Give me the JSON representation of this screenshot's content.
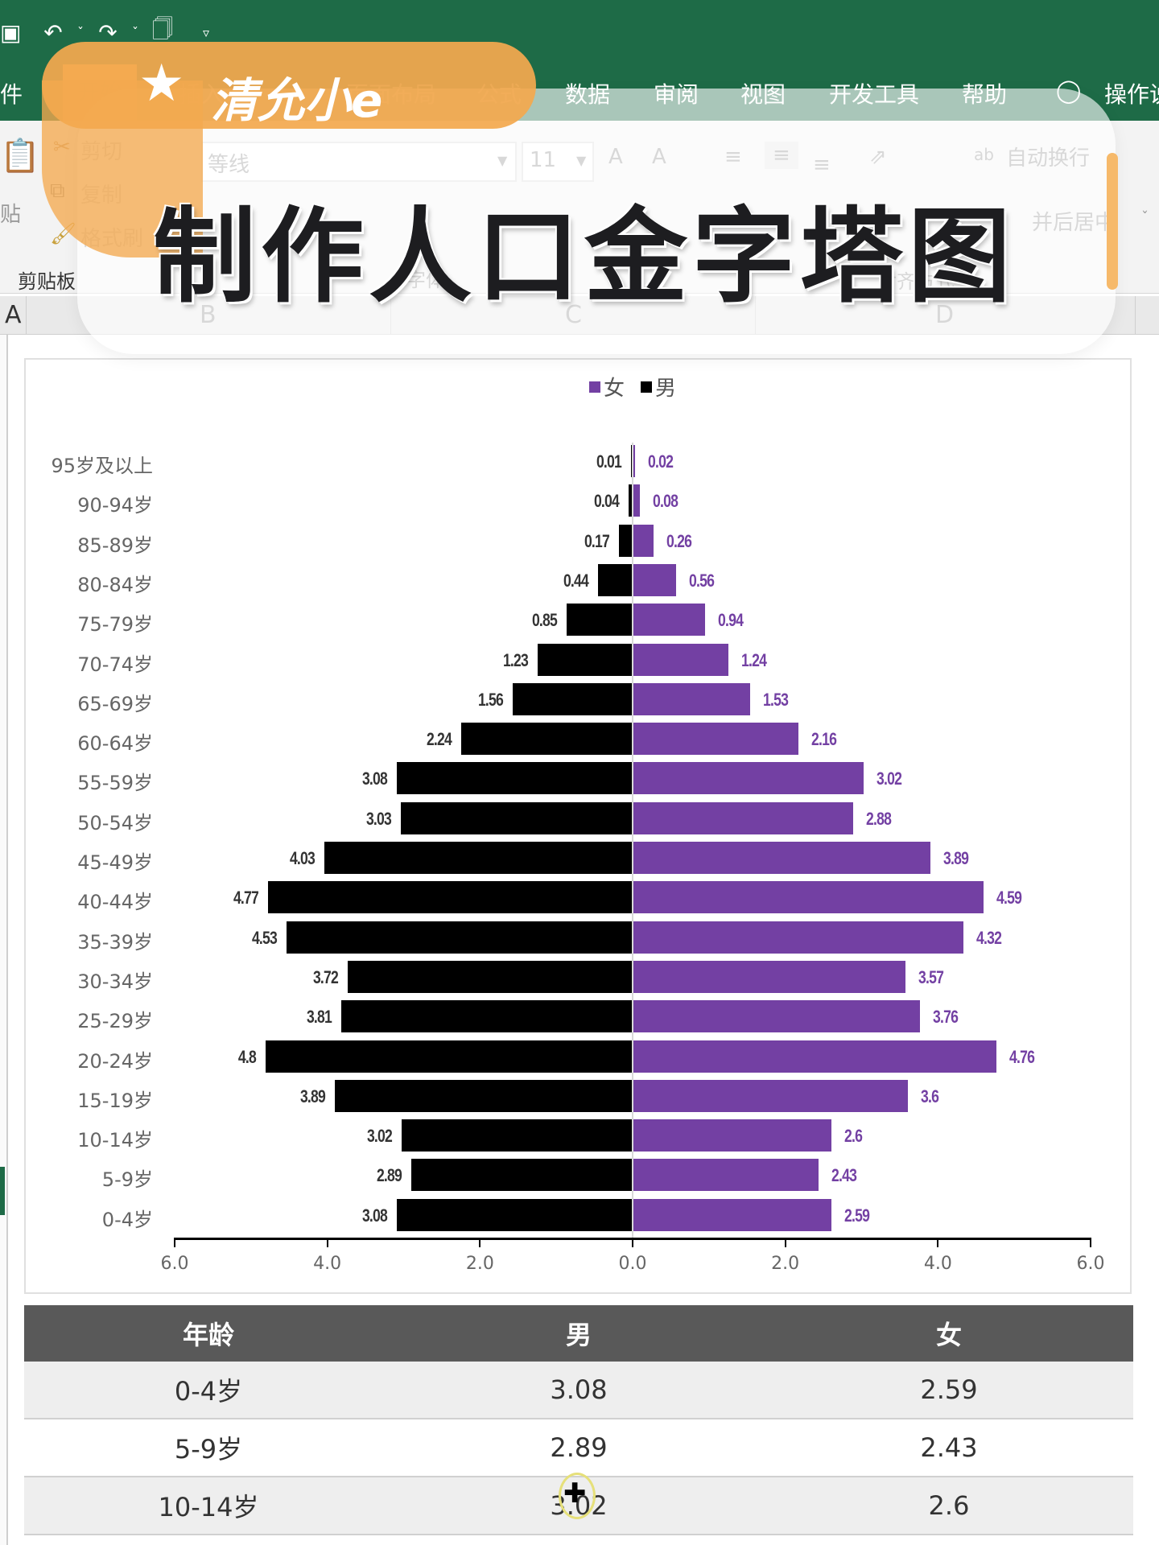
{
  "app": {
    "quick_access": [
      "save-icon",
      "undo-icon",
      "redo-icon",
      "print-preview-icon",
      "customize-icon"
    ],
    "menu": {
      "items": [
        "件",
        "开始",
        "插入",
        "页面布局",
        "公式",
        "数据",
        "审阅",
        "视图",
        "开发工具",
        "帮助"
      ],
      "tell_me": "操作说"
    },
    "ribbon": {
      "clipboard": {
        "paste": "贴",
        "cut": "剪切",
        "copy": "复制",
        "format_painter": "格式刷",
        "group_label": "剪贴板"
      },
      "font": {
        "font_name": "等线",
        "font_size": "11",
        "grow": "A",
        "shrink": "A",
        "group_label": "字体"
      },
      "alignment": {
        "wrap_text": "自动换行",
        "merge_center": "并后居中",
        "group_label": "对齐方式"
      }
    },
    "columns": [
      "A",
      "B",
      "C",
      "D"
    ]
  },
  "overlay": {
    "brand": "清允小e",
    "title": "制作人口金字塔图"
  },
  "colors": {
    "excel_green": "#1e6b47",
    "female": "#7340a3",
    "male": "#000000",
    "brand_orange": "#f3a94f",
    "table_header": "#595959"
  },
  "chart_data": {
    "type": "bar",
    "orientation": "horizontal",
    "subtype": "population-pyramid",
    "title": "",
    "legend": [
      "女",
      "男"
    ],
    "legend_position": "top",
    "categories": [
      "95岁及以上",
      "90-94岁",
      "85-89岁",
      "80-84岁",
      "75-79岁",
      "70-74岁",
      "65-69岁",
      "60-64岁",
      "55-59岁",
      "50-54岁",
      "45-49岁",
      "40-44岁",
      "35-39岁",
      "30-34岁",
      "25-29岁",
      "20-24岁",
      "15-19岁",
      "10-14岁",
      "5-9岁",
      "0-4岁"
    ],
    "series": [
      {
        "name": "男",
        "side": "left",
        "color": "#000000",
        "values": [
          0.01,
          0.04,
          0.17,
          0.44,
          0.85,
          1.23,
          1.56,
          2.24,
          3.08,
          3.03,
          4.03,
          4.77,
          4.53,
          3.72,
          3.81,
          4.8,
          3.89,
          3.02,
          2.89,
          3.08
        ]
      },
      {
        "name": "女",
        "side": "right",
        "color": "#7340a3",
        "values": [
          0.02,
          0.08,
          0.26,
          0.56,
          0.94,
          1.24,
          1.53,
          2.16,
          3.02,
          2.88,
          3.89,
          4.59,
          4.32,
          3.57,
          3.76,
          4.76,
          3.6,
          2.6,
          2.43,
          2.59
        ]
      }
    ],
    "x_ticks": [
      "6.0",
      "4.0",
      "2.0",
      "0.0",
      "2.0",
      "4.0",
      "6.0"
    ],
    "xlim": [
      -6,
      6
    ],
    "xlabel": "",
    "ylabel": "",
    "grid": false
  },
  "table": {
    "headers": [
      "年龄",
      "男",
      "女"
    ],
    "rows": [
      [
        "0-4岁",
        "3.08",
        "2.59"
      ],
      [
        "5-9岁",
        "2.89",
        "2.43"
      ],
      [
        "10-14岁",
        "3.02",
        "2.6"
      ]
    ]
  }
}
